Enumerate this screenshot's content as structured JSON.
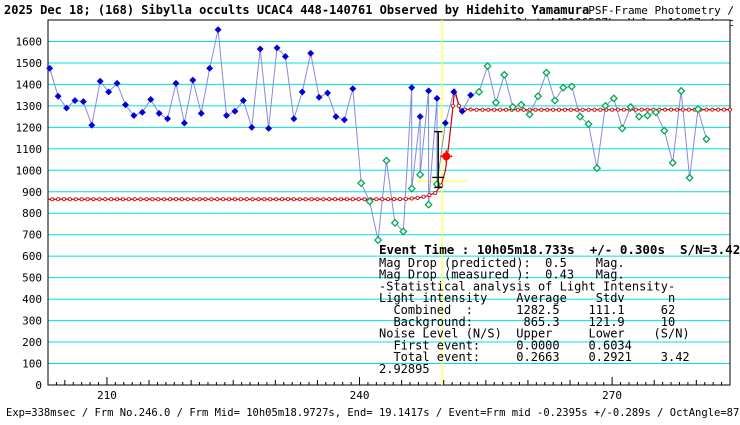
{
  "title": "2025 Dec 18; (168) Sibylla occults UCAC4 448-140761 Observed by Hidehito Yamamura",
  "subtitle_right": "PSF-Frame Photometry /",
  "dist_veloc": "Dist=442106587km Veloc=16457m/sec",
  "footer": "Exp=338msec / Frm No.246.0 / Frm Mid= 10h05m18.9727s, End= 19.1417s / Event=Frm mid -0.2395s +/-0.289s / OctAngle=87.7deg",
  "annotations": [
    {
      "text": "Event Time : 10h05m18.733s  +/- 0.300s  S/N=3.42",
      "bold": true
    },
    {
      "text": "Mag Drop (predicted):  0.5    Mag."
    },
    {
      "text": "Mag Drop (measured ):  0.43   Mag."
    },
    {
      "text": "-Statistical analysis of Light Intensity-"
    },
    {
      "text": "Light intensity    Average    Stdv      n"
    },
    {
      "text": "  Combined  :      1282.5    111.1     62"
    },
    {
      "text": "  Background:       865.3    121.9     10"
    },
    {
      "text": "Noise Level (N/S)  Upper     Lower    (S/N)"
    },
    {
      "text": "  First event:     0.0000    0.6034"
    },
    {
      "text": "  Total event:     0.2663    0.2921    3.42"
    },
    {
      "text": "2.92895"
    }
  ],
  "colors": {
    "grid": "#00e0e0",
    "blue_points": "#0000dd",
    "green_points": "#00aa55",
    "connect_line": "#8888dd",
    "model_line": "#cc0000",
    "event_line": "#ffff66",
    "event_marker": "#ff0000"
  },
  "chart_data": {
    "type": "scatter",
    "xlim": [
      203,
      284
    ],
    "ylim": [
      0,
      1700
    ],
    "x_ticks": [
      210,
      240,
      270
    ],
    "y_ticks": [
      0,
      100,
      200,
      300,
      400,
      500,
      600,
      700,
      800,
      900,
      1000,
      1100,
      1200,
      1300,
      1400,
      1500,
      1600
    ],
    "grid": true,
    "series": [
      {
        "marker": "blue-diamond",
        "points": [
          [
            203.2,
            1475
          ],
          [
            204.2,
            1345
          ],
          [
            205.2,
            1290
          ],
          [
            206.2,
            1325
          ],
          [
            207.2,
            1320
          ],
          [
            208.2,
            1210
          ],
          [
            209.2,
            1415
          ],
          [
            210.2,
            1365
          ],
          [
            211.2,
            1405
          ],
          [
            212.2,
            1305
          ],
          [
            213.2,
            1255
          ],
          [
            214.2,
            1270
          ],
          [
            215.2,
            1330
          ],
          [
            216.2,
            1265
          ],
          [
            217.2,
            1240
          ],
          [
            218.2,
            1405
          ],
          [
            219.2,
            1220
          ],
          [
            220.2,
            1420
          ],
          [
            221.2,
            1265
          ],
          [
            222.2,
            1475
          ],
          [
            223.2,
            1655
          ],
          [
            224.2,
            1255
          ],
          [
            225.2,
            1275
          ],
          [
            226.2,
            1325
          ],
          [
            227.2,
            1200
          ],
          [
            228.2,
            1565
          ],
          [
            229.2,
            1195
          ],
          [
            230.2,
            1570
          ],
          [
            231.2,
            1530
          ],
          [
            232.2,
            1240
          ],
          [
            233.2,
            1365
          ],
          [
            234.2,
            1545
          ],
          [
            235.2,
            1340
          ],
          [
            236.2,
            1360
          ],
          [
            237.2,
            1250
          ],
          [
            238.2,
            1235
          ],
          [
            239.2,
            1380
          ],
          [
            246.2,
            1385
          ],
          [
            247.2,
            1250
          ],
          [
            248.2,
            1370
          ],
          [
            249.2,
            1335
          ],
          [
            250.2,
            1220
          ],
          [
            251.2,
            1365
          ],
          [
            252.2,
            1275
          ],
          [
            253.2,
            1350
          ]
        ]
      },
      {
        "marker": "green-diamond",
        "points": [
          [
            240.2,
            940
          ],
          [
            241.2,
            855
          ],
          [
            242.2,
            675
          ],
          [
            243.2,
            1045
          ],
          [
            244.2,
            755
          ],
          [
            245.2,
            715
          ],
          [
            246.2,
            915
          ],
          [
            247.2,
            980
          ],
          [
            248.2,
            840
          ],
          [
            249.2,
            935
          ],
          [
            254.2,
            1365
          ],
          [
            255.2,
            1485
          ],
          [
            256.2,
            1315
          ],
          [
            257.2,
            1445
          ],
          [
            258.2,
            1295
          ],
          [
            259.2,
            1305
          ],
          [
            260.2,
            1260
          ],
          [
            261.2,
            1345
          ],
          [
            262.2,
            1455
          ],
          [
            263.2,
            1325
          ],
          [
            264.2,
            1385
          ],
          [
            265.2,
            1390
          ],
          [
            266.2,
            1250
          ],
          [
            267.2,
            1215
          ],
          [
            268.2,
            1010
          ],
          [
            269.2,
            1300
          ],
          [
            270.2,
            1335
          ],
          [
            271.2,
            1195
          ],
          [
            272.2,
            1295
          ],
          [
            273.2,
            1250
          ],
          [
            274.2,
            1255
          ],
          [
            275.2,
            1270
          ],
          [
            276.2,
            1185
          ],
          [
            277.2,
            1035
          ],
          [
            278.2,
            1370
          ],
          [
            279.2,
            965
          ],
          [
            280.2,
            1285
          ],
          [
            281.2,
            1145
          ]
        ]
      },
      {
        "marker": "red-circle-model",
        "points": [
          [
            203,
            865
          ],
          [
            243,
            865
          ],
          [
            245,
            866
          ],
          [
            246,
            868
          ],
          [
            247,
            872
          ],
          [
            248,
            880
          ],
          [
            249,
            895
          ],
          [
            249.7,
            930
          ],
          [
            250.2,
            1000
          ],
          [
            250.6,
            1120
          ],
          [
            251.0,
            1260
          ],
          [
            251.3,
            1380
          ],
          [
            251.6,
            1330
          ],
          [
            252.0,
            1270
          ],
          [
            252.6,
            1285
          ],
          [
            253.5,
            1282
          ],
          [
            284,
            1282.5
          ]
        ]
      }
    ],
    "event_x": 249.8,
    "event_y": 1060,
    "event_error_x": [
      246.8,
      252.8
    ],
    "measurement_point": [
      250.3,
      1065
    ],
    "measurement_error_y": [
      920,
      1180
    ]
  }
}
